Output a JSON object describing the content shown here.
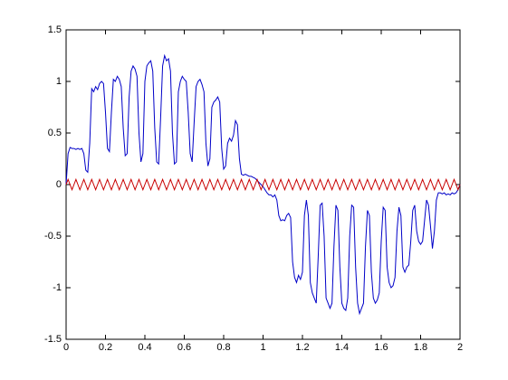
{
  "chart_data": {
    "type": "line",
    "x": [
      0,
      0.01,
      0.02,
      0.03,
      0.04,
      0.05,
      0.06,
      0.07,
      0.08,
      0.09,
      0.1,
      0.11,
      0.12,
      0.13,
      0.14,
      0.15,
      0.16,
      0.17,
      0.18,
      0.19,
      0.2,
      0.21,
      0.22,
      0.23,
      0.24,
      0.25,
      0.26,
      0.27,
      0.28,
      0.29,
      0.3,
      0.31,
      0.32,
      0.33,
      0.34,
      0.35,
      0.36,
      0.37,
      0.38,
      0.39,
      0.4,
      0.41,
      0.42,
      0.43,
      0.44,
      0.45,
      0.46,
      0.47,
      0.48,
      0.49,
      0.5,
      0.51,
      0.52,
      0.53,
      0.54,
      0.55,
      0.56,
      0.57,
      0.58,
      0.59,
      0.6,
      0.61,
      0.62,
      0.63,
      0.64,
      0.65,
      0.66,
      0.67,
      0.68,
      0.69,
      0.7,
      0.71,
      0.72,
      0.73,
      0.74,
      0.75,
      0.76,
      0.77,
      0.78,
      0.79,
      0.8,
      0.81,
      0.82,
      0.83,
      0.84,
      0.85,
      0.86,
      0.87,
      0.88,
      0.89,
      0.9,
      0.91,
      0.92,
      0.93,
      0.94,
      0.95,
      0.96,
      0.97,
      0.98,
      0.99,
      1,
      1.01,
      1.02,
      1.03,
      1.04,
      1.05,
      1.06,
      1.07,
      1.08,
      1.09,
      1.1,
      1.11,
      1.12,
      1.13,
      1.14,
      1.15,
      1.16,
      1.17,
      1.18,
      1.19,
      1.2,
      1.21,
      1.22,
      1.23,
      1.24,
      1.25,
      1.26,
      1.27,
      1.28,
      1.29,
      1.3,
      1.31,
      1.32,
      1.33,
      1.34,
      1.35,
      1.36,
      1.37,
      1.38,
      1.39,
      1.4,
      1.41,
      1.42,
      1.43,
      1.44,
      1.45,
      1.46,
      1.47,
      1.48,
      1.49,
      1.5,
      1.51,
      1.52,
      1.53,
      1.54,
      1.55,
      1.56,
      1.57,
      1.58,
      1.59,
      1.6,
      1.61,
      1.62,
      1.63,
      1.64,
      1.65,
      1.66,
      1.67,
      1.68,
      1.69,
      1.7,
      1.71,
      1.72,
      1.73,
      1.74,
      1.75,
      1.76,
      1.77,
      1.78,
      1.79,
      1.8,
      1.81,
      1.82,
      1.83,
      1.84,
      1.85,
      1.86,
      1.87,
      1.88,
      1.89,
      1.9,
      1.91,
      1.92,
      1.93,
      1.94,
      1.95,
      1.96,
      1.97,
      1.98,
      1.99,
      2
    ],
    "series": [
      {
        "color": "#0000c8",
        "values": [
          0,
          0.3,
          0.36,
          0.35,
          0.35,
          0.34,
          0.35,
          0.34,
          0.35,
          0.3,
          0.14,
          0.12,
          0.4,
          0.93,
          0.9,
          0.95,
          0.92,
          0.98,
          1,
          0.98,
          0.7,
          0.35,
          0.32,
          0.7,
          1.02,
          1,
          1.05,
          1.02,
          0.95,
          0.55,
          0.28,
          0.3,
          0.85,
          1.1,
          1.15,
          1.12,
          1.05,
          0.5,
          0.22,
          0.3,
          1,
          1.15,
          1.18,
          1.2,
          1.1,
          0.55,
          0.22,
          0.2,
          0.65,
          1.15,
          1.25,
          1.2,
          1.22,
          1.1,
          0.5,
          0.2,
          0.22,
          0.9,
          1,
          1.05,
          1.02,
          1,
          0.7,
          0.3,
          0.22,
          0.6,
          0.95,
          1,
          1.02,
          0.97,
          0.9,
          0.4,
          0.18,
          0.25,
          0.75,
          0.8,
          0.82,
          0.85,
          0.8,
          0.35,
          0.15,
          0.18,
          0.4,
          0.45,
          0.42,
          0.48,
          0.62,
          0.58,
          0.25,
          0.1,
          0.09,
          0.1,
          0.09,
          0.08,
          0.08,
          0.07,
          0.06,
          0.04,
          0.02,
          0,
          -0.02,
          -0.05,
          -0.08,
          -0.1,
          -0.1,
          -0.12,
          -0.1,
          -0.15,
          -0.3,
          -0.35,
          -0.34,
          -0.35,
          -0.3,
          -0.28,
          -0.32,
          -0.75,
          -0.9,
          -0.95,
          -0.88,
          -0.92,
          -0.85,
          -0.3,
          -0.15,
          -0.3,
          -0.95,
          -1.05,
          -1.1,
          -1.15,
          -0.7,
          -0.2,
          -0.18,
          -0.5,
          -1.1,
          -1.15,
          -1.2,
          -1.15,
          -0.6,
          -0.2,
          -0.25,
          -0.8,
          -1.15,
          -1.2,
          -1.22,
          -1.1,
          -0.5,
          -0.2,
          -0.22,
          -0.8,
          -1.15,
          -1.25,
          -1.2,
          -1.15,
          -0.6,
          -0.25,
          -0.3,
          -0.85,
          -1.1,
          -1.15,
          -1.12,
          -1.05,
          -0.55,
          -0.22,
          -0.25,
          -0.8,
          -0.95,
          -1,
          -0.98,
          -0.9,
          -0.45,
          -0.22,
          -0.3,
          -0.8,
          -0.85,
          -0.8,
          -0.78,
          -0.55,
          -0.25,
          -0.2,
          -0.45,
          -0.55,
          -0.58,
          -0.55,
          -0.35,
          -0.15,
          -0.2,
          -0.4,
          -0.62,
          -0.45,
          -0.15,
          -0.08,
          -0.08,
          -0.09,
          -0.08,
          -0.1,
          -0.09,
          -0.1,
          -0.08,
          -0.09,
          -0.08,
          -0.05,
          0
        ]
      },
      {
        "color": "#c80000",
        "values": [
          0,
          0.05,
          0,
          -0.05,
          0,
          0.05,
          0,
          -0.05,
          0,
          0.05,
          0,
          -0.05,
          0,
          0.05,
          0,
          -0.05,
          0,
          0.05,
          0,
          -0.05,
          0,
          0.05,
          0,
          -0.05,
          0,
          0.05,
          0,
          -0.05,
          0,
          0.05,
          0,
          -0.05,
          0,
          0.05,
          0,
          -0.05,
          0,
          0.05,
          0,
          -0.05,
          0,
          0.05,
          0,
          -0.05,
          0,
          0.05,
          0,
          -0.05,
          0,
          0.05,
          0,
          -0.05,
          0,
          0.05,
          0,
          -0.05,
          0,
          0.05,
          0,
          -0.05,
          0,
          0.05,
          0,
          -0.05,
          0,
          0.05,
          0,
          -0.05,
          0,
          0.05,
          0,
          -0.05,
          0,
          0.05,
          0,
          -0.05,
          0,
          0.05,
          0,
          -0.05,
          0,
          0.05,
          0,
          -0.05,
          0,
          0.05,
          0,
          -0.05,
          0,
          0.05,
          0,
          -0.05,
          0,
          0.05,
          0,
          -0.05,
          0,
          0.05,
          0,
          -0.05,
          0,
          0.05,
          0,
          -0.05,
          0,
          0.05,
          0,
          -0.05,
          0,
          0.05,
          0,
          -0.05,
          0,
          0.05,
          0,
          -0.05,
          0,
          0.05,
          0,
          -0.05,
          0,
          0.05,
          0,
          -0.05,
          0,
          0.05,
          0,
          -0.05,
          0,
          0.05,
          0,
          -0.05,
          0,
          0.05,
          0,
          -0.05,
          0,
          0.05,
          0,
          -0.05,
          0,
          0.05,
          0,
          -0.05,
          0,
          0.05,
          0,
          -0.05,
          0,
          0.05,
          0,
          -0.05,
          0,
          0.05,
          0,
          -0.05,
          0,
          0.05,
          0,
          -0.05,
          0,
          0.05,
          0,
          -0.05,
          0,
          0.05,
          0,
          -0.05,
          0,
          0.05,
          0,
          -0.05,
          0,
          0.05,
          0,
          -0.05,
          0,
          0.05,
          0,
          -0.05,
          0,
          0.05,
          0,
          -0.05,
          0,
          0.05,
          0,
          -0.05,
          0,
          0.05,
          0,
          -0.05,
          0,
          0.05,
          0,
          -0.05,
          0,
          0.05,
          0,
          -0.05,
          0
        ]
      }
    ],
    "xlim": [
      0,
      2
    ],
    "xticks": [
      0,
      0.2,
      0.4,
      0.6,
      0.8,
      1,
      1.2,
      1.4,
      1.6,
      1.8,
      2
    ],
    "ylim": [
      -1.5,
      1.5
    ],
    "yticks": [
      -1.5,
      -1,
      -0.5,
      0,
      0.5,
      1,
      1.5
    ]
  }
}
